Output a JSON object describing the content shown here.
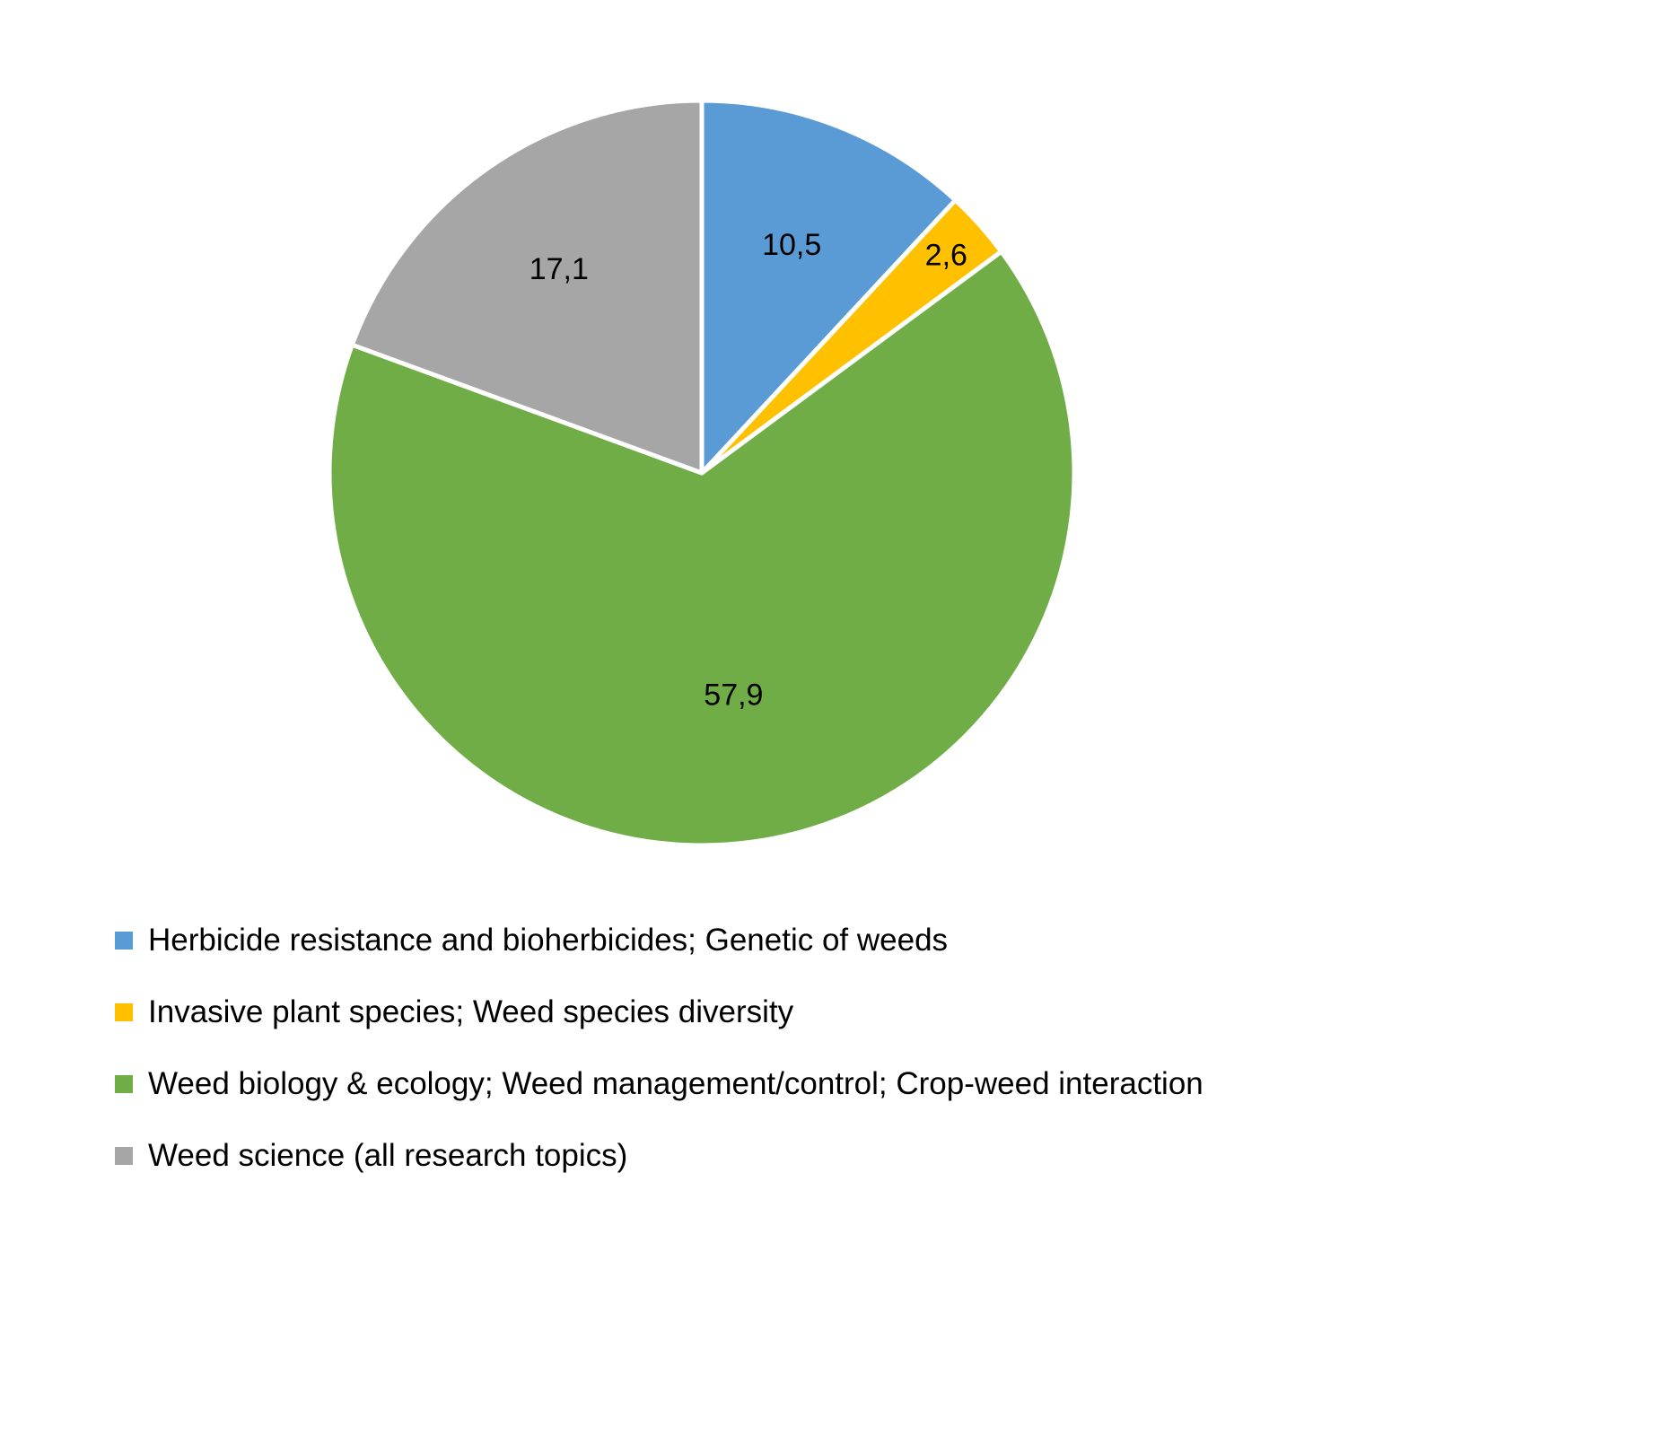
{
  "chart_data": {
    "type": "pie",
    "title": "",
    "start_angle_deg": 0,
    "direction": "clockwise",
    "legend_position": "bottom-left",
    "values_sum": 88.1,
    "slices": [
      {
        "label": "Herbicide resistance and bioherbicides; Genetic of weeds",
        "value": 10.5,
        "display": "10,5",
        "color": "#5B9BD5"
      },
      {
        "label": "Invasive plant species; Weed species diversity",
        "value": 2.6,
        "display": "2,6",
        "color": "#FFC000"
      },
      {
        "label": "Weed biology & ecology; Weed management/control; Crop-weed interaction",
        "value": 57.9,
        "display": "57,9",
        "color": "#70AD47"
      },
      {
        "label": "Weed science (all research topics)",
        "value": 17.1,
        "display": "17,1",
        "color": "#A6A6A6"
      }
    ]
  }
}
